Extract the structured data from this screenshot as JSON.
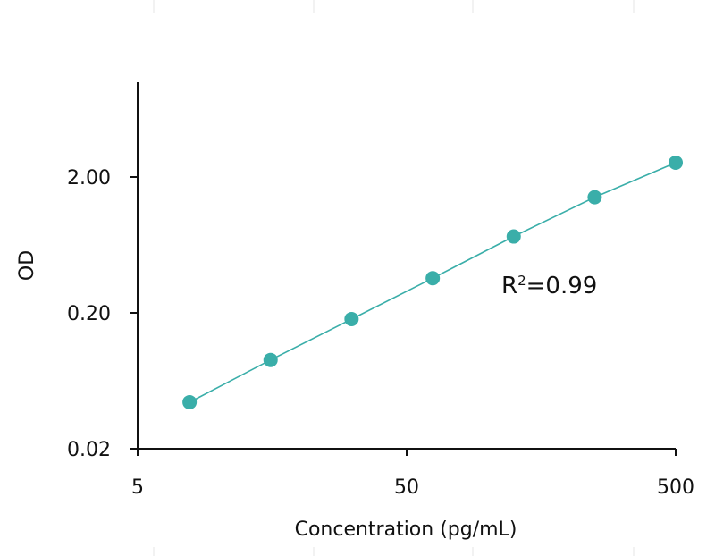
{
  "chart_data": {
    "type": "scatter",
    "xscale": "log",
    "yscale": "log",
    "xlabel": "Concentration (pg/mL)",
    "ylabel": "OD",
    "xlim": [
      5,
      500
    ],
    "ylim": [
      0.02,
      4
    ],
    "x_ticks": [
      "5",
      "50",
      "500"
    ],
    "y_ticks": [
      "0.02",
      "0.20",
      "2.00"
    ],
    "grid": false,
    "legend": "none",
    "color": "#3aaea9",
    "annotation": {
      "base": "R",
      "sup": "2",
      "rest": "=0.99"
    },
    "series": [
      {
        "points": [
          {
            "x": 7.8,
            "y": 0.044
          },
          {
            "x": 15.6,
            "y": 0.09
          },
          {
            "x": 31.2,
            "y": 0.18
          },
          {
            "x": 62.5,
            "y": 0.36
          },
          {
            "x": 125,
            "y": 0.73
          },
          {
            "x": 250,
            "y": 1.42
          },
          {
            "x": 500,
            "y": 2.55
          }
        ]
      }
    ]
  }
}
